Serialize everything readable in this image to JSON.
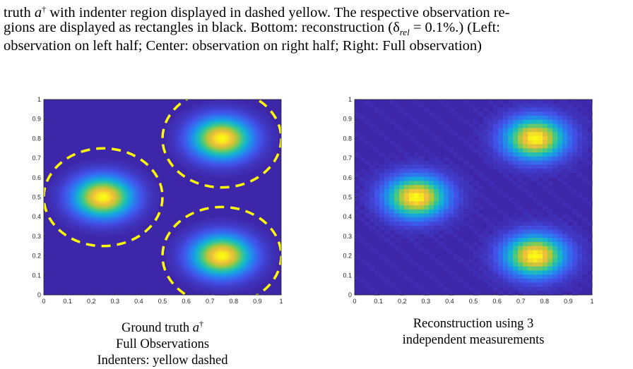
{
  "caption": {
    "line1_prefix": "truth ",
    "line1_var": "a",
    "line1_sup": "†",
    "line1_rest": " with indenter region displayed in dashed yellow. The respective observation re-",
    "line2": "gions are displayed as rectangles in black. Bottom: reconstruction (δ",
    "line2_sub": "rel",
    "line2_rest": " = 0.1%.) (Left:",
    "line3": "observation on left half; Center: observation on right half; Right: Full observation)"
  },
  "figures": [
    {
      "name": "ground-truth",
      "caption_lines": [
        "Ground truth ",
        "Full Observations",
        "Indenters: yellow dashed"
      ],
      "caption_var": "a",
      "caption_sup": "†"
    },
    {
      "name": "reconstruction",
      "caption_lines": [
        "Reconstruction using 3",
        "independent measurements"
      ]
    }
  ],
  "chart_data": [
    {
      "type": "heatmap",
      "title": "",
      "xlim": [
        0,
        1
      ],
      "ylim": [
        0,
        1
      ],
      "x_ticks": [
        "0",
        "0.1",
        "0.2",
        "0.3",
        "0.4",
        "0.5",
        "0.6",
        "0.7",
        "0.8",
        "0.9",
        "1"
      ],
      "y_ticks": [
        "0",
        "0.1",
        "0.2",
        "0.3",
        "0.4",
        "0.5",
        "0.6",
        "0.7",
        "0.8",
        "0.9",
        "1"
      ],
      "colormap": "parula",
      "peaks": [
        {
          "x": 0.25,
          "y": 0.5,
          "value": 1.0
        },
        {
          "x": 0.75,
          "y": 0.8,
          "value": 1.0
        },
        {
          "x": 0.75,
          "y": 0.2,
          "value": 1.0
        }
      ],
      "indenters": [
        {
          "cx": 0.25,
          "cy": 0.5,
          "r": 0.25
        },
        {
          "cx": 0.75,
          "cy": 0.8,
          "r": 0.25
        },
        {
          "cx": 0.75,
          "cy": 0.2,
          "r": 0.25
        }
      ],
      "indenter_color": "#ffff00",
      "background_color": "#3e26a8",
      "pixelated": false
    },
    {
      "type": "heatmap",
      "title": "",
      "xlim": [
        0,
        1
      ],
      "ylim": [
        0,
        1
      ],
      "x_ticks": [
        "0",
        "0.1",
        "0.2",
        "0.3",
        "0.4",
        "0.5",
        "0.6",
        "0.7",
        "0.8",
        "0.9",
        "1"
      ],
      "y_ticks": [
        "0",
        "0.1",
        "0.2",
        "0.3",
        "0.4",
        "0.5",
        "0.6",
        "0.7",
        "0.8",
        "0.9",
        "1"
      ],
      "colormap": "parula",
      "peaks": [
        {
          "x": 0.26,
          "y": 0.5,
          "value": 1.0
        },
        {
          "x": 0.76,
          "y": 0.8,
          "value": 1.0
        },
        {
          "x": 0.76,
          "y": 0.2,
          "value": 1.0
        }
      ],
      "indenters": [],
      "background_color": "#3e26a8",
      "pixelated": true
    }
  ]
}
